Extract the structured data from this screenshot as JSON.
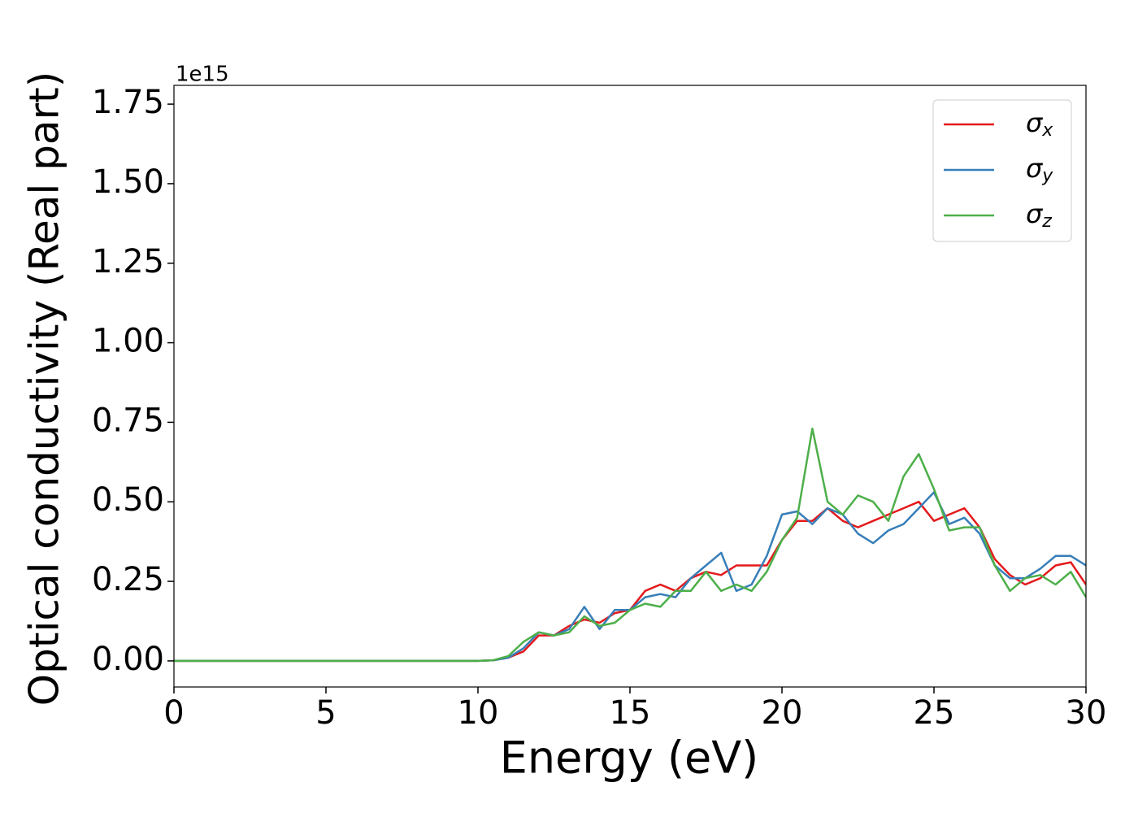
{
  "chart_data": {
    "type": "line",
    "x_label": "Energy (eV)",
    "y_label": "Optical conductivity (Real part)",
    "offset_label": "1e15",
    "x": [
      0,
      1,
      2,
      3,
      4,
      5,
      6,
      7,
      8,
      9,
      10,
      10.5,
      11,
      11.5,
      12,
      12.5,
      13,
      13.5,
      14,
      14.5,
      15,
      15.5,
      16,
      16.5,
      17,
      17.5,
      18,
      18.5,
      19,
      19.5,
      20,
      20.5,
      21,
      21.5,
      22,
      22.5,
      23,
      23.5,
      24,
      24.5,
      25,
      25.5,
      26,
      26.5,
      27,
      27.5,
      28,
      28.5,
      29,
      29.5,
      30
    ],
    "series": [
      {
        "name": "σx",
        "color": "#e41a1c",
        "values": [
          0,
          0,
          0,
          0,
          0,
          0,
          0,
          0,
          0,
          0,
          0,
          0.002,
          0.01,
          0.03,
          0.08,
          0.08,
          0.11,
          0.13,
          0.12,
          0.15,
          0.16,
          0.22,
          0.24,
          0.22,
          0.26,
          0.28,
          0.27,
          0.3,
          0.3,
          0.3,
          0.38,
          0.44,
          0.44,
          0.48,
          0.44,
          0.42,
          0.44,
          0.46,
          0.48,
          0.5,
          0.44,
          0.46,
          0.48,
          0.42,
          0.32,
          0.27,
          0.24,
          0.26,
          0.3,
          0.31,
          0.24
        ]
      },
      {
        "name": "σy",
        "color": "#377eb8",
        "values": [
          0,
          0,
          0,
          0,
          0,
          0,
          0,
          0,
          0,
          0,
          0,
          0.002,
          0.01,
          0.04,
          0.09,
          0.08,
          0.1,
          0.17,
          0.1,
          0.16,
          0.16,
          0.2,
          0.21,
          0.2,
          0.26,
          0.3,
          0.34,
          0.22,
          0.24,
          0.33,
          0.46,
          0.47,
          0.43,
          0.48,
          0.46,
          0.4,
          0.37,
          0.41,
          0.43,
          0.48,
          0.53,
          0.43,
          0.45,
          0.4,
          0.3,
          0.26,
          0.26,
          0.29,
          0.33,
          0.33,
          0.3
        ]
      },
      {
        "name": "σz",
        "color": "#4daf4a",
        "values": [
          0,
          0,
          0,
          0,
          0,
          0,
          0,
          0,
          0,
          0,
          0,
          0.002,
          0.015,
          0.06,
          0.09,
          0.08,
          0.09,
          0.14,
          0.11,
          0.12,
          0.16,
          0.18,
          0.17,
          0.22,
          0.22,
          0.28,
          0.22,
          0.24,
          0.22,
          0.28,
          0.38,
          0.45,
          0.73,
          0.5,
          0.46,
          0.52,
          0.5,
          0.44,
          0.58,
          0.65,
          0.54,
          0.41,
          0.42,
          0.42,
          0.3,
          0.22,
          0.26,
          0.27,
          0.24,
          0.28,
          0.2
        ]
      }
    ],
    "xlim": [
      0,
      30
    ],
    "xticks": [
      0,
      5,
      10,
      15,
      20,
      25,
      30
    ],
    "ylim": [
      -0.082,
      1.809
    ],
    "yticks": [
      {
        "value": 0,
        "label": "0.00"
      },
      0.25,
      {
        "value": 0.5,
        "label": "0.50"
      },
      0.75,
      {
        "value": 1,
        "label": "1.00"
      },
      1.25,
      {
        "value": 1.5,
        "label": "1.50"
      },
      1.75
    ],
    "legend": "upper right",
    "grid": false
  }
}
